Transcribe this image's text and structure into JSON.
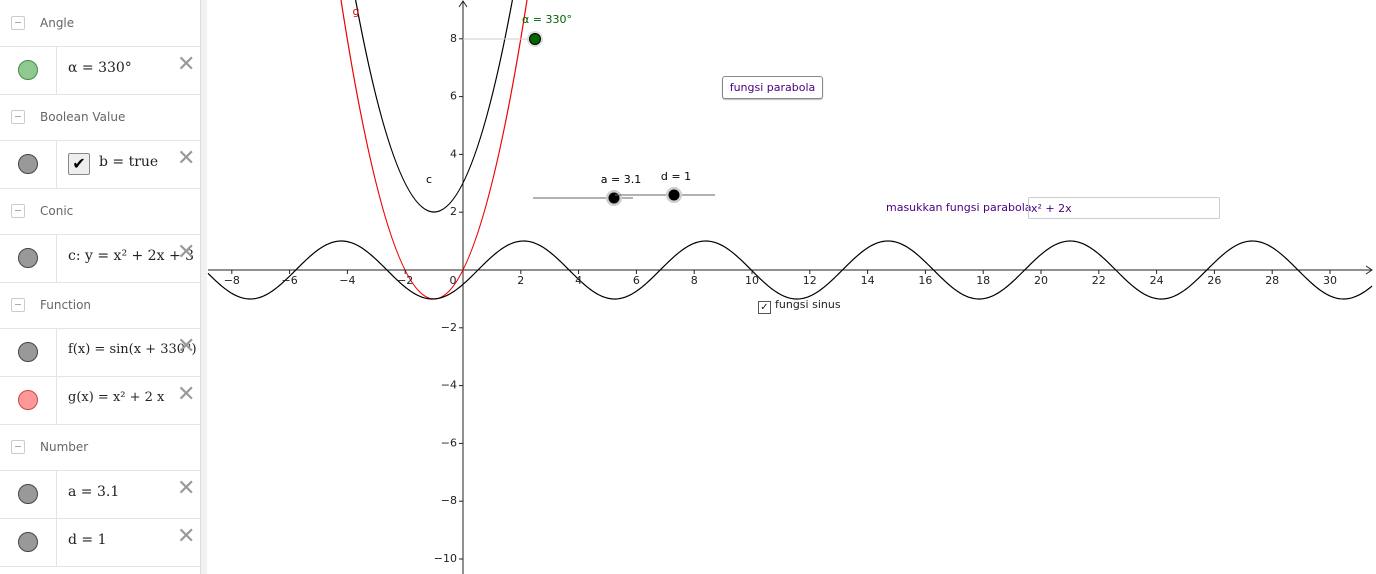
{
  "algebra": {
    "groups": [
      {
        "title": "Angle",
        "items": [
          "α = 330°"
        ]
      },
      {
        "title": "Boolean Value",
        "items": [
          "b = true"
        ]
      },
      {
        "title": "Conic",
        "items": [
          "c: y = x² + 2x + 3"
        ]
      },
      {
        "title": "Function",
        "items": [
          "f(x) = sin(x + 330°)",
          "g(x) = x² + 2 x"
        ]
      },
      {
        "title": "Number",
        "items": [
          "a = 3.1",
          "d = 1"
        ]
      }
    ]
  },
  "graphics": {
    "xticks": [
      {
        "value": -8,
        "label": "−8"
      },
      {
        "value": -6,
        "label": "−6"
      },
      {
        "value": -4,
        "label": "−4"
      },
      {
        "value": -2,
        "label": "−2"
      },
      0,
      2,
      4,
      6,
      8,
      10,
      12,
      14,
      16,
      18,
      20,
      22,
      24,
      26,
      28,
      30
    ],
    "yticks": [
      8,
      6,
      4,
      2,
      {
        "value": -2,
        "label": "−2"
      },
      {
        "value": -4,
        "label": "−4"
      },
      {
        "value": -6,
        "label": "−6"
      },
      {
        "value": -8,
        "label": "−8"
      },
      {
        "value": -10,
        "label": "−10"
      }
    ],
    "labels": {
      "g": "g",
      "c": "c",
      "alpha": "α = 330°",
      "slider_a": "a = 3.1",
      "slider_d": "d = 1"
    },
    "button": "fungsi parabola",
    "input_caption": "masukkan fungsi parabola",
    "input_value": "x² + 2x",
    "checkbox": "fungsi sinus"
  }
}
